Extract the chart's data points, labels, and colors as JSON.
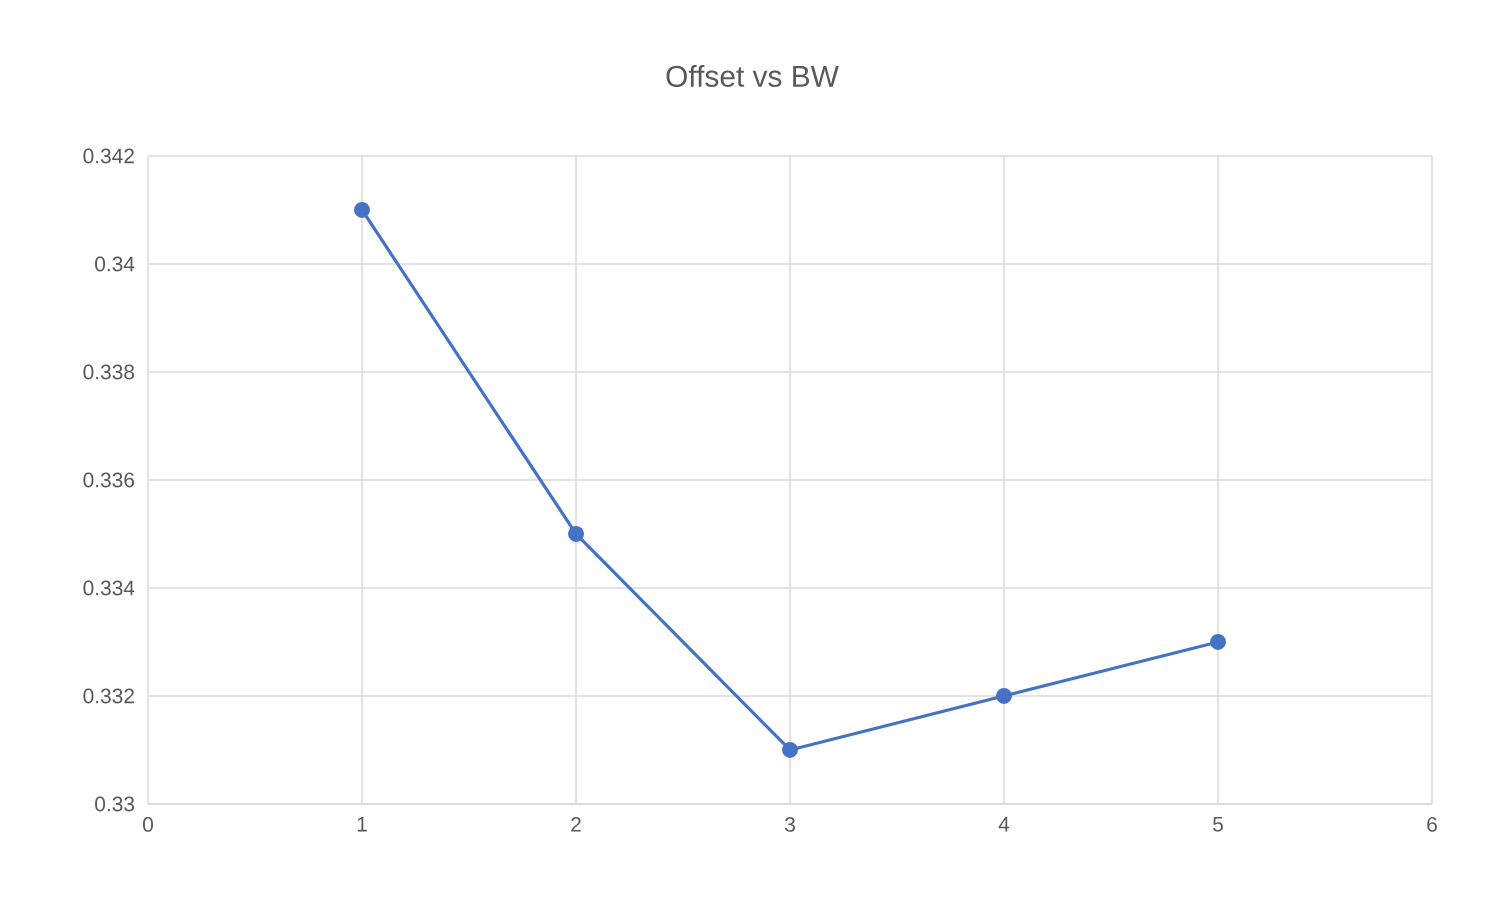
{
  "chart_data": {
    "type": "line",
    "title": "Offset vs BW",
    "x": [
      1,
      2,
      3,
      4,
      5
    ],
    "series": [
      {
        "color": "#4472c4",
        "values": [
          0.341,
          0.335,
          0.331,
          0.332,
          0.333
        ]
      }
    ],
    "xlim": [
      0,
      6
    ],
    "xticks": [
      0,
      1,
      2,
      3,
      4,
      5,
      6
    ],
    "ylim": [
      0.33,
      0.342
    ],
    "yticks": [
      0.33,
      0.332,
      0.334,
      0.336,
      0.338,
      0.34,
      0.342
    ],
    "grid": true,
    "marker": "circle",
    "line_style": "solid",
    "legend": false
  }
}
